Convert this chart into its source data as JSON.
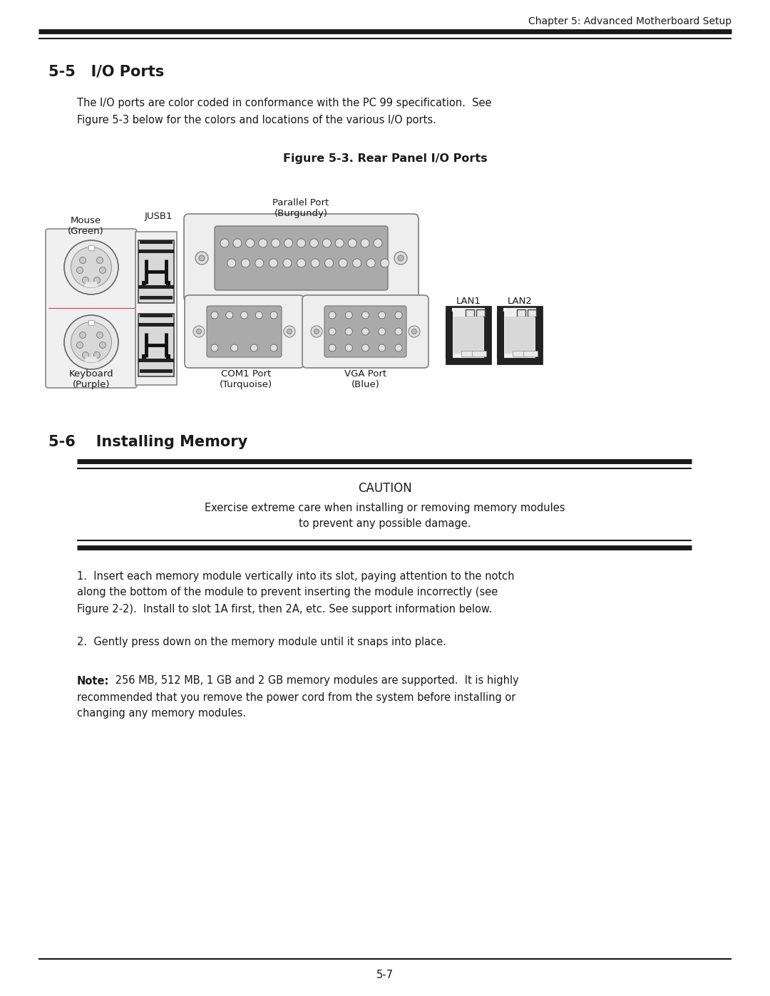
{
  "bg_color": "#ffffff",
  "text_color": "#1a1a1a",
  "header_text": "Chapter 5: Advanced Motherboard Setup",
  "section_55_title": "5-5   I/O Ports",
  "section_55_body1": "The I/O ports are color coded in conformance with the PC 99 specification.  See",
  "section_55_body2": "Figure 5-3 below for the colors and locations of the various I/O ports.",
  "figure_title": "Figure 5-3. Rear Panel I/O Ports",
  "label_mouse": "Mouse\n(Green)",
  "label_keyboard": "Keyboard\n(Purple)",
  "label_jusb1": "JUSB1",
  "label_parallel": "Parallel Port\n(Burgundy)",
  "label_com1": "COM1 Port\n(Turquoise)",
  "label_vga": "VGA Port\n(Blue)",
  "label_lan1": "LAN1",
  "label_lan2": "LAN2",
  "section_56_title": "5-6    Installing Memory",
  "caution_title": "CAUTION",
  "caution_body1": "Exercise extreme care when installing or removing memory modules",
  "caution_body2": "to prevent any possible damage.",
  "para1_line1": "1.  Insert each memory module vertically into its slot, paying attention to the notch",
  "para1_line2": "along the bottom of the module to prevent inserting the module incorrectly (see",
  "para1_line3": "Figure 2-2).  Install to slot 1A first, then 2A, etc. See support information below.",
  "para2": "2.  Gently press down on the memory module until it snaps into place.",
  "note_bold": "Note:",
  "note_rest": " 256 MB, 512 MB, 1 GB and 2 GB memory modules are supported.  It is highly",
  "note_line2": "recommended that you remove the power cord from the system before installing or",
  "note_line3": "changing any memory modules.",
  "page_num": "5-7",
  "header_fontsize": 10,
  "title_fontsize": 15,
  "body_fontsize": 10.5,
  "fig_title_fontsize": 11.5,
  "label_fontsize": 9.5,
  "caution_title_fontsize": 12,
  "caution_body_fontsize": 10.5,
  "page_fontsize": 10.5
}
